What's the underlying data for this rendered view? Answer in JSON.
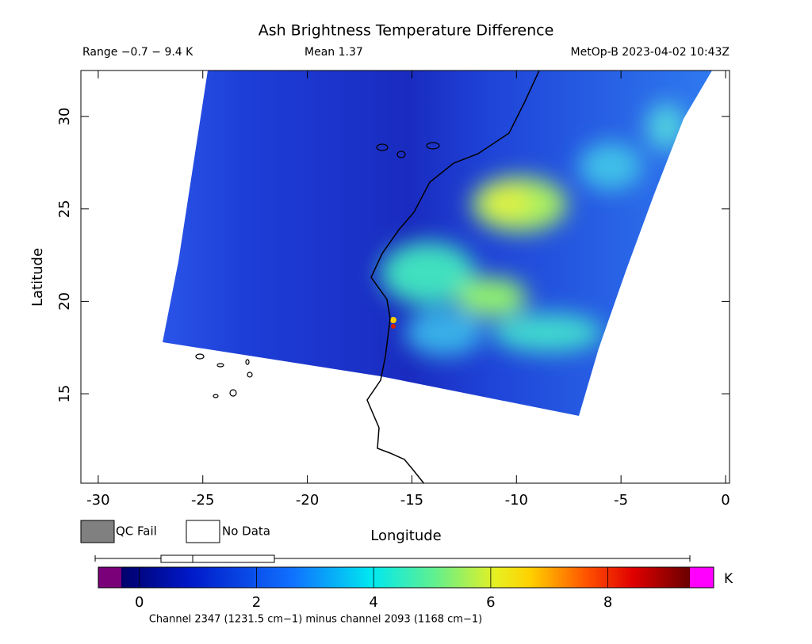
{
  "title": "Ash Brightness Temperature Difference",
  "range": "Range −0.7 − 9.4 K",
  "mean": "Mean 1.37",
  "satellite": "MetOp-B 2023-04-02 10:43Z",
  "x_axis": {
    "label": "Longitude",
    "ticks": [
      -30,
      -25,
      -20,
      -15,
      -10,
      -5,
      0
    ],
    "lim": [
      -30.83,
      0.19
    ]
  },
  "y_axis": {
    "label": "Latitude",
    "ticks": [
      15,
      20,
      25,
      30
    ],
    "lim": [
      10.16,
      32.49
    ]
  },
  "legend": [
    "QC Fail",
    "No Data"
  ],
  "colorbar": {
    "unit": "K",
    "ticks": [
      0,
      2,
      4,
      6,
      8
    ],
    "lim": [
      -0.7,
      9.4
    ]
  },
  "footnote": "Channel 2347 (1231.5 cm−1) minus channel 2093 (1168 cm−1)"
}
